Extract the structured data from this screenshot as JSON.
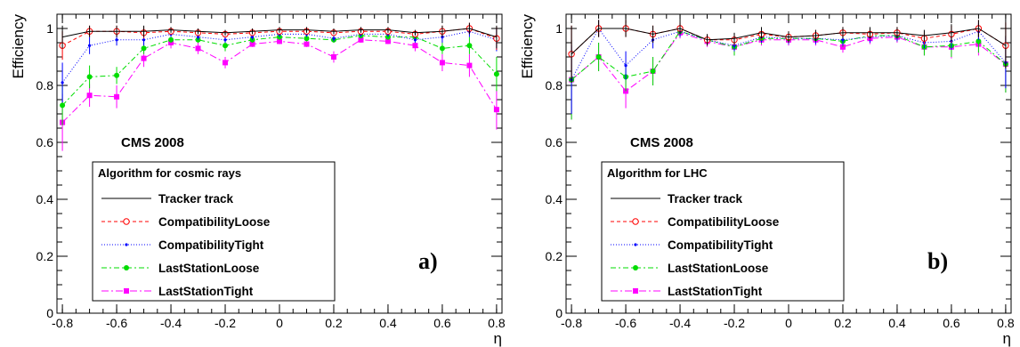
{
  "chart_data": [
    {
      "type": "line",
      "panel_label": "a)",
      "experiment_label": "CMS 2008",
      "legend_title": "Algorithm for cosmic rays",
      "legend_placement": "bottom-left",
      "xlabel": "η",
      "ylabel": "Efficiency",
      "xlim": [
        -0.82,
        0.82
      ],
      "ylim": [
        0,
        1.05
      ],
      "xticks": [
        "-0.8",
        "-0.6",
        "-0.4",
        "-0.2",
        "0",
        "0.2",
        "0.4",
        "0.6",
        "0.8"
      ],
      "yticks": [
        "0",
        "0.2",
        "0.4",
        "0.6",
        "0.8",
        "1"
      ],
      "grid": false,
      "x": [
        -0.8,
        -0.7,
        -0.6,
        -0.5,
        -0.4,
        -0.3,
        -0.2,
        -0.1,
        0.0,
        0.1,
        0.2,
        0.3,
        0.4,
        0.5,
        0.6,
        0.7,
        0.8
      ],
      "series": [
        {
          "name": "Tracker track",
          "color": "#000000",
          "marker": "none",
          "dash": "",
          "values": [
            0.97,
            0.99,
            0.99,
            0.99,
            0.995,
            0.99,
            0.985,
            0.99,
            0.995,
            0.995,
            0.99,
            0.995,
            0.995,
            0.985,
            0.99,
            1.0,
            0.97
          ],
          "errors": [
            0.04,
            0.02,
            0.02,
            0.02,
            0.01,
            0.01,
            0.01,
            0.01,
            0.01,
            0.01,
            0.01,
            0.01,
            0.01,
            0.01,
            0.02,
            0.02,
            0.04
          ]
        },
        {
          "name": "CompatibilityLoose",
          "color": "#ff0000",
          "marker": "open-circle",
          "dash": "4,3",
          "values": [
            0.94,
            0.99,
            0.99,
            0.985,
            0.99,
            0.985,
            0.98,
            0.985,
            0.99,
            0.99,
            0.985,
            0.99,
            0.99,
            0.98,
            0.99,
            1.0,
            0.965
          ],
          "errors": [
            0.05,
            0.02,
            0.02,
            0.02,
            0.01,
            0.01,
            0.01,
            0.01,
            0.01,
            0.01,
            0.01,
            0.01,
            0.01,
            0.01,
            0.02,
            0.02,
            0.04
          ]
        },
        {
          "name": "CompatibilityTight",
          "color": "#0000ff",
          "marker": "dot",
          "dash": "1,2",
          "values": [
            0.81,
            0.94,
            0.96,
            0.96,
            0.98,
            0.97,
            0.96,
            0.97,
            0.98,
            0.98,
            0.965,
            0.98,
            0.98,
            0.96,
            0.97,
            0.99,
            0.96
          ],
          "errors": [
            0.07,
            0.03,
            0.02,
            0.02,
            0.01,
            0.01,
            0.01,
            0.01,
            0.01,
            0.01,
            0.01,
            0.01,
            0.01,
            0.01,
            0.02,
            0.02,
            0.04
          ]
        },
        {
          "name": "LastStationLoose",
          "color": "#00dd00",
          "marker": "filled-circle",
          "dash": "6,3,2,3",
          "values": [
            0.73,
            0.83,
            0.835,
            0.93,
            0.96,
            0.96,
            0.94,
            0.96,
            0.97,
            0.965,
            0.96,
            0.975,
            0.97,
            0.97,
            0.93,
            0.94,
            0.84
          ],
          "errors": [
            0.07,
            0.04,
            0.03,
            0.02,
            0.01,
            0.01,
            0.02,
            0.01,
            0.01,
            0.01,
            0.01,
            0.01,
            0.01,
            0.02,
            0.02,
            0.03,
            0.06
          ]
        },
        {
          "name": "LastStationTight",
          "color": "#ff00ff",
          "marker": "filled-square",
          "dash": "8,3,2,3",
          "values": [
            0.67,
            0.765,
            0.76,
            0.895,
            0.95,
            0.93,
            0.88,
            0.945,
            0.955,
            0.945,
            0.9,
            0.96,
            0.955,
            0.94,
            0.88,
            0.87,
            0.715
          ],
          "errors": [
            0.1,
            0.04,
            0.04,
            0.03,
            0.02,
            0.02,
            0.02,
            0.01,
            0.01,
            0.01,
            0.02,
            0.01,
            0.01,
            0.02,
            0.03,
            0.04,
            0.07
          ]
        }
      ]
    },
    {
      "type": "line",
      "panel_label": "b)",
      "experiment_label": "CMS 2008",
      "legend_title": "Algorithm for LHC",
      "legend_placement": "bottom-left",
      "xlabel": "η",
      "ylabel": "Efficiency",
      "xlim": [
        -0.82,
        0.82
      ],
      "ylim": [
        0,
        1.05
      ],
      "xticks": [
        "-0.8",
        "-0.6",
        "-0.4",
        "-0.2",
        "0",
        "0.2",
        "0.4",
        "0.6",
        "0.8"
      ],
      "yticks": [
        "0",
        "0.2",
        "0.4",
        "0.6",
        "0.8",
        "1"
      ],
      "grid": false,
      "x": [
        -0.8,
        -0.7,
        -0.6,
        -0.5,
        -0.4,
        -0.3,
        -0.2,
        -0.1,
        0.0,
        0.1,
        0.2,
        0.3,
        0.4,
        0.5,
        0.6,
        0.7,
        0.8
      ],
      "series": [
        {
          "name": "Tracker track",
          "color": "#000000",
          "marker": "none",
          "dash": "",
          "values": [
            0.91,
            1.0,
            1.0,
            0.98,
            1.0,
            0.96,
            0.965,
            0.985,
            0.97,
            0.975,
            0.985,
            0.985,
            0.985,
            0.975,
            0.985,
            1.0,
            0.94
          ],
          "errors": [
            0.1,
            0.03,
            0.03,
            0.03,
            0.02,
            0.02,
            0.02,
            0.02,
            0.02,
            0.02,
            0.02,
            0.02,
            0.02,
            0.02,
            0.03,
            0.03,
            0.08
          ]
        },
        {
          "name": "CompatibilityLoose",
          "color": "#ff0000",
          "marker": "open-circle",
          "dash": "4,3",
          "values": [
            0.91,
            1.0,
            1.0,
            0.98,
            1.0,
            0.96,
            0.96,
            0.98,
            0.97,
            0.975,
            0.985,
            0.98,
            0.985,
            0.965,
            0.98,
            1.0,
            0.94
          ],
          "errors": [
            0.1,
            0.03,
            0.03,
            0.03,
            0.02,
            0.02,
            0.02,
            0.02,
            0.02,
            0.02,
            0.02,
            0.02,
            0.02,
            0.02,
            0.03,
            0.03,
            0.08
          ]
        },
        {
          "name": "CompatibilityTight",
          "color": "#0000ff",
          "marker": "dot",
          "dash": "1,2",
          "values": [
            0.82,
            1.0,
            0.87,
            0.96,
            0.99,
            0.96,
            0.94,
            0.97,
            0.965,
            0.965,
            0.96,
            0.97,
            0.975,
            0.95,
            0.955,
            0.99,
            0.88
          ],
          "errors": [
            0.12,
            0.03,
            0.05,
            0.03,
            0.02,
            0.02,
            0.02,
            0.02,
            0.02,
            0.02,
            0.02,
            0.02,
            0.02,
            0.02,
            0.03,
            0.03,
            0.09
          ]
        },
        {
          "name": "LastStationLoose",
          "color": "#00dd00",
          "marker": "filled-circle",
          "dash": "6,3,2,3",
          "values": [
            0.82,
            0.9,
            0.83,
            0.85,
            0.99,
            0.96,
            0.935,
            0.965,
            0.965,
            0.965,
            0.955,
            0.975,
            0.975,
            0.935,
            0.94,
            0.955,
            0.875
          ],
          "errors": [
            0.14,
            0.05,
            0.05,
            0.05,
            0.02,
            0.02,
            0.03,
            0.02,
            0.02,
            0.02,
            0.02,
            0.02,
            0.02,
            0.03,
            0.04,
            0.04,
            0.1
          ]
        },
        {
          "name": "LastStationTight",
          "color": "#ff00ff",
          "marker": "filled-square",
          "dash": "8,3,2,3",
          "values": [
            0.82,
            0.9,
            0.78,
            0.85,
            0.985,
            0.955,
            0.935,
            0.96,
            0.96,
            0.96,
            0.935,
            0.965,
            0.97,
            0.935,
            0.935,
            0.945,
            0.875
          ],
          "errors": [
            0.14,
            0.05,
            0.06,
            0.05,
            0.02,
            0.02,
            0.03,
            0.02,
            0.02,
            0.02,
            0.02,
            0.02,
            0.02,
            0.03,
            0.04,
            0.04,
            0.1
          ]
        }
      ]
    }
  ]
}
